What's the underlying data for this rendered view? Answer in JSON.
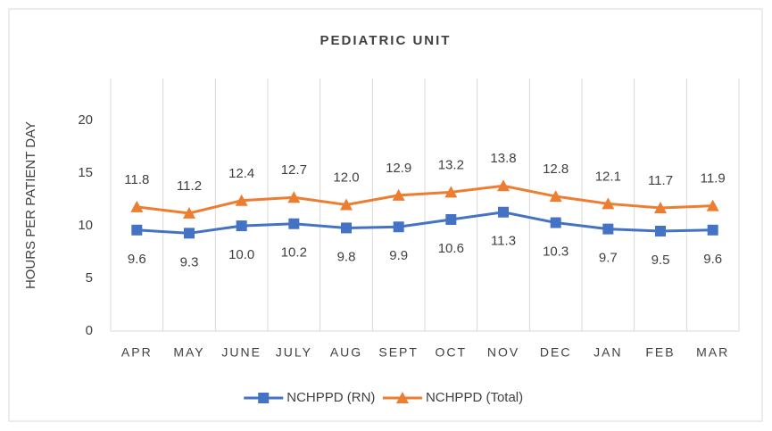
{
  "chart_data": {
    "type": "line",
    "title": "PEDIATRIC UNIT",
    "y_label": "HOURS PER PATIENT DAY",
    "categories": [
      "APR",
      "MAY",
      "JUNE",
      "JULY",
      "AUG",
      "SEPT",
      "OCT",
      "NOV",
      "DEC",
      "JAN",
      "FEB",
      "MAR"
    ],
    "series": [
      {
        "name": "NCHPPD (RN)",
        "color": "#4472c4",
        "marker": "square",
        "values": [
          9.6,
          9.3,
          10.0,
          10.2,
          9.8,
          9.9,
          10.6,
          11.3,
          10.3,
          9.7,
          9.5,
          9.6
        ],
        "value_labels": [
          "9.6",
          "9.3",
          "10.0",
          "10.2",
          "9.8",
          "9.9",
          "10.6",
          "11.3",
          "10.3",
          "9.7",
          "9.5",
          "9.6"
        ]
      },
      {
        "name": "NCHPPD (Total)",
        "color": "#ed7d31",
        "marker": "triangle",
        "values": [
          11.8,
          11.2,
          12.4,
          12.7,
          12.0,
          12.9,
          13.2,
          13.8,
          12.8,
          12.1,
          11.7,
          11.9
        ],
        "value_labels": [
          "11.8",
          "11.2",
          "12.4",
          "12.7",
          "12.0",
          "12.9",
          "13.2",
          "13.8",
          "12.8",
          "12.1",
          "11.7",
          "11.9"
        ]
      }
    ],
    "ylim": [
      0,
      24
    ],
    "yticks": [
      0,
      5,
      10,
      15,
      20
    ],
    "grid": "vertical",
    "legend": "bottom"
  }
}
